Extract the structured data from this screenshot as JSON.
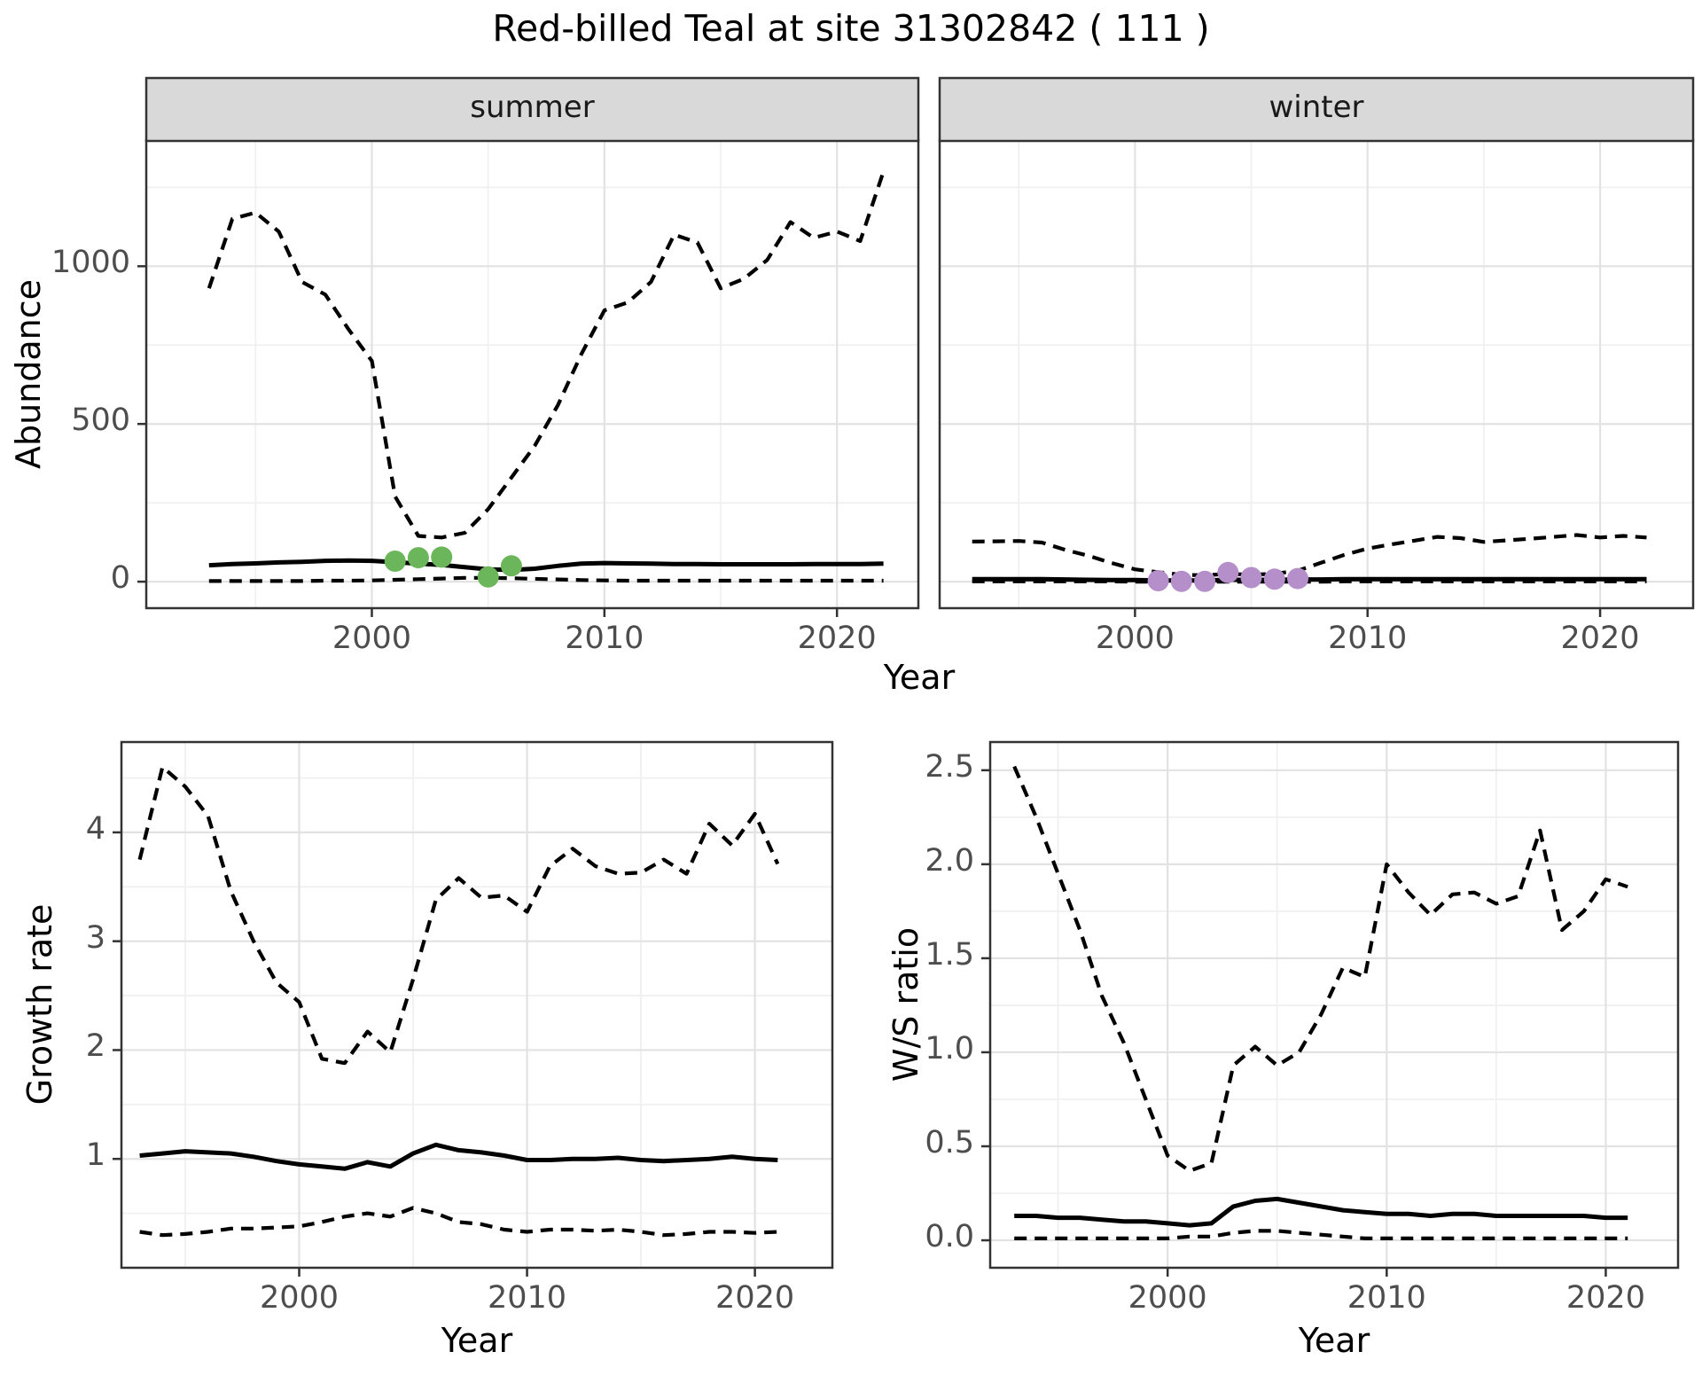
{
  "title": "Red-billed Teal at site 31302842 ( 111 )",
  "axis_labels": {
    "abundance": "Abundance",
    "year": "Year",
    "growth_rate": "Growth rate",
    "ws_ratio": "W/S ratio"
  },
  "facets": {
    "summer": "summer",
    "winter": "winter"
  },
  "colors": {
    "summer_points": "#6bb55a",
    "winter_points": "#b58fc9",
    "line": "#000000",
    "strip_bg": "#d9d9d9",
    "panel_border": "#333333",
    "grid_major": "#e2e2e2",
    "grid_minor": "#f0f0f0",
    "tick_text": "#4d4d4d"
  },
  "chart_data": [
    {
      "id": "abundance-summer",
      "type": "line",
      "facet": "summer",
      "title": "summer",
      "xlabel": "Year",
      "ylabel": "Abundance",
      "legend_position": "none",
      "grid": true,
      "x": [
        1993,
        1994,
        1995,
        1996,
        1997,
        1998,
        1999,
        2000,
        2001,
        2002,
        2003,
        2004,
        2005,
        2006,
        2007,
        2008,
        2009,
        2010,
        2011,
        2012,
        2013,
        2014,
        2015,
        2016,
        2017,
        2018,
        2019,
        2020,
        2021,
        2022
      ],
      "series": [
        {
          "name": "upper_ci",
          "style": "dashed",
          "values": [
            930,
            1150,
            1170,
            1110,
            950,
            910,
            800,
            700,
            270,
            145,
            140,
            155,
            230,
            330,
            430,
            560,
            720,
            860,
            885,
            950,
            1100,
            1075,
            930,
            960,
            1020,
            1140,
            1090,
            1110,
            1080,
            1300
          ]
        },
        {
          "name": "median",
          "style": "solid",
          "values": [
            52,
            56,
            58,
            61,
            63,
            66,
            67,
            66,
            62,
            57,
            53,
            46,
            39,
            37,
            41,
            50,
            57,
            59,
            58,
            57,
            56,
            56,
            55,
            55,
            55,
            55,
            56,
            56,
            56,
            57
          ]
        },
        {
          "name": "lower_ci",
          "style": "dashed",
          "values": [
            2,
            2,
            2,
            2,
            2,
            3,
            3,
            4,
            6,
            8,
            10,
            12,
            12,
            11,
            9,
            7,
            5,
            4,
            3,
            3,
            3,
            3,
            3,
            3,
            3,
            3,
            3,
            3,
            3,
            3
          ]
        }
      ],
      "observed_points": {
        "color": "#6bb55a",
        "x": [
          2001,
          2002,
          2003,
          2005,
          2006
        ],
        "y": [
          65,
          76,
          78,
          15,
          50
        ]
      },
      "x_ticks": {
        "values": [
          2000,
          2010,
          2020
        ],
        "labels": [
          "2000",
          "2010",
          "2020"
        ]
      },
      "y_ticks": {
        "values": [
          0,
          500,
          1000
        ],
        "labels": [
          "0",
          "500",
          "1000"
        ]
      },
      "x_minor": [
        1995,
        2005,
        2015
      ],
      "y_minor": [
        250,
        750,
        1250
      ],
      "xlim": [
        1990.3,
        2023.5
      ],
      "ylim": [
        -84,
        1400
      ]
    },
    {
      "id": "abundance-winter",
      "type": "line",
      "facet": "winter",
      "title": "winter",
      "xlabel": "Year",
      "ylabel": "Abundance",
      "legend_position": "none",
      "grid": true,
      "x": [
        1993,
        1994,
        1995,
        1996,
        1997,
        1998,
        1999,
        2000,
        2001,
        2002,
        2003,
        2004,
        2005,
        2006,
        2007,
        2008,
        2009,
        2010,
        2011,
        2012,
        2013,
        2014,
        2015,
        2016,
        2017,
        2018,
        2019,
        2020,
        2021,
        2022
      ],
      "series": [
        {
          "name": "upper_ci",
          "style": "dashed",
          "values": [
            127,
            128,
            129,
            124,
            101,
            82,
            59,
            39,
            30,
            22,
            20,
            25,
            22,
            25,
            35,
            60,
            85,
            105,
            118,
            130,
            142,
            138,
            126,
            131,
            136,
            142,
            148,
            140,
            145,
            140
          ]
        },
        {
          "name": "median",
          "style": "solid",
          "values": [
            8,
            8,
            8,
            8,
            7,
            6,
            5,
            5,
            4,
            4,
            4,
            6,
            6,
            6,
            7,
            7,
            8,
            8,
            8,
            8,
            8,
            8,
            8,
            8,
            8,
            8,
            8,
            8,
            8,
            8
          ]
        },
        {
          "name": "lower_ci",
          "style": "dashed",
          "values": [
            1,
            1,
            1,
            1,
            1,
            1,
            1,
            0,
            0,
            0,
            0,
            0,
            0,
            0,
            0,
            0,
            1,
            1,
            1,
            1,
            1,
            1,
            1,
            1,
            1,
            1,
            1,
            1,
            1,
            1
          ]
        }
      ],
      "observed_points": {
        "color": "#b58fc9",
        "x": [
          2001,
          2002,
          2003,
          2004,
          2005,
          2006,
          2007
        ],
        "y": [
          3,
          1,
          1,
          29,
          13,
          8,
          10
        ]
      },
      "x_ticks": {
        "values": [
          2000,
          2010,
          2020
        ],
        "labels": [
          "2000",
          "2010",
          "2020"
        ]
      },
      "y_ticks": {
        "values": [],
        "labels": []
      },
      "x_minor": [
        1995,
        2005,
        2015
      ],
      "y_minor": [
        250,
        750,
        1250
      ],
      "y_major_grid": [
        0,
        500,
        1000
      ],
      "xlim": [
        1991.6,
        2024.0
      ],
      "ylim": [
        -84,
        1400
      ]
    },
    {
      "id": "growth-rate",
      "type": "line",
      "facet": null,
      "title": "",
      "xlabel": "Year",
      "ylabel": "Growth rate",
      "legend_position": "none",
      "grid": true,
      "x": [
        1993,
        1994,
        1995,
        1996,
        1997,
        1998,
        1999,
        2000,
        2001,
        2002,
        2003,
        2004,
        2005,
        2006,
        2007,
        2008,
        2009,
        2010,
        2011,
        2012,
        2013,
        2014,
        2015,
        2016,
        2017,
        2018,
        2019,
        2020,
        2021
      ],
      "series": [
        {
          "name": "upper_ci",
          "style": "dashed",
          "values": [
            3.75,
            4.6,
            4.42,
            4.15,
            3.46,
            3.0,
            2.62,
            2.44,
            1.92,
            1.88,
            2.17,
            1.98,
            2.65,
            3.38,
            3.58,
            3.4,
            3.42,
            3.27,
            3.69,
            3.85,
            3.69,
            3.62,
            3.63,
            3.75,
            3.62,
            4.08,
            3.88,
            4.17,
            3.71
          ]
        },
        {
          "name": "median",
          "style": "solid",
          "values": [
            1.03,
            1.05,
            1.07,
            1.06,
            1.05,
            1.02,
            0.98,
            0.95,
            0.93,
            0.91,
            0.97,
            0.93,
            1.05,
            1.13,
            1.08,
            1.06,
            1.03,
            0.99,
            0.99,
            1.0,
            1.0,
            1.01,
            0.99,
            0.98,
            0.99,
            1.0,
            1.02,
            1.0,
            0.99
          ]
        },
        {
          "name": "lower_ci",
          "style": "dashed",
          "values": [
            0.33,
            0.3,
            0.31,
            0.33,
            0.36,
            0.36,
            0.37,
            0.38,
            0.42,
            0.47,
            0.5,
            0.47,
            0.55,
            0.5,
            0.42,
            0.4,
            0.35,
            0.33,
            0.35,
            0.35,
            0.34,
            0.35,
            0.33,
            0.3,
            0.31,
            0.33,
            0.33,
            0.32,
            0.33
          ]
        }
      ],
      "observed_points": null,
      "x_ticks": {
        "values": [
          2000,
          2010,
          2020
        ],
        "labels": [
          "2000",
          "2010",
          "2020"
        ]
      },
      "y_ticks": {
        "values": [
          1,
          2,
          3,
          4
        ],
        "labels": [
          "1",
          "2",
          "3",
          "4"
        ]
      },
      "x_minor": [
        1995,
        2005,
        2015
      ],
      "y_minor": [
        0.5,
        1.5,
        2.5,
        3.5,
        4.5
      ],
      "xlim": [
        1992.2,
        2023.4
      ],
      "ylim": [
        0,
        4.83
      ]
    },
    {
      "id": "ws-ratio",
      "type": "line",
      "facet": null,
      "title": "",
      "xlabel": "Year",
      "ylabel": "W/S ratio",
      "legend_position": "none",
      "grid": true,
      "x": [
        1993,
        1994,
        1995,
        1996,
        1997,
        1998,
        1999,
        2000,
        2001,
        2002,
        2003,
        2004,
        2005,
        2006,
        2007,
        2008,
        2009,
        2010,
        2011,
        2012,
        2013,
        2014,
        2015,
        2016,
        2017,
        2018,
        2019,
        2020,
        2021
      ],
      "series": [
        {
          "name": "upper_ci",
          "style": "dashed",
          "values": [
            2.52,
            2.25,
            1.95,
            1.65,
            1.3,
            1.05,
            0.75,
            0.45,
            0.37,
            0.41,
            0.93,
            1.03,
            0.93,
            1.0,
            1.2,
            1.45,
            1.4,
            2.0,
            1.85,
            1.73,
            1.84,
            1.85,
            1.79,
            1.83,
            2.18,
            1.65,
            1.75,
            1.92,
            1.88
          ]
        },
        {
          "name": "median",
          "style": "solid",
          "values": [
            0.13,
            0.13,
            0.12,
            0.12,
            0.11,
            0.1,
            0.1,
            0.09,
            0.08,
            0.09,
            0.18,
            0.21,
            0.22,
            0.2,
            0.18,
            0.16,
            0.15,
            0.14,
            0.14,
            0.13,
            0.14,
            0.14,
            0.13,
            0.13,
            0.13,
            0.13,
            0.13,
            0.12,
            0.12
          ]
        },
        {
          "name": "lower_ci",
          "style": "dashed",
          "values": [
            0.01,
            0.01,
            0.01,
            0.01,
            0.01,
            0.01,
            0.01,
            0.01,
            0.02,
            0.02,
            0.04,
            0.05,
            0.05,
            0.04,
            0.03,
            0.02,
            0.01,
            0.01,
            0.01,
            0.01,
            0.01,
            0.01,
            0.01,
            0.01,
            0.01,
            0.01,
            0.01,
            0.01,
            0.01
          ]
        }
      ],
      "observed_points": null,
      "x_ticks": {
        "values": [
          2000,
          2010,
          2020
        ],
        "labels": [
          "2000",
          "2010",
          "2020"
        ]
      },
      "y_ticks": {
        "values": [
          0,
          0.5,
          1,
          1.5,
          2,
          2.5
        ],
        "labels": [
          "0.0",
          "0.5",
          "1.0",
          "1.5",
          "2.0",
          "2.5"
        ]
      },
      "x_minor": [
        1995,
        2005,
        2015
      ],
      "y_minor": [
        0.25,
        0.75,
        1.25,
        1.75,
        2.25
      ],
      "xlim": [
        1991.9,
        2023.3
      ],
      "ylim": [
        -0.146,
        2.65
      ]
    }
  ]
}
